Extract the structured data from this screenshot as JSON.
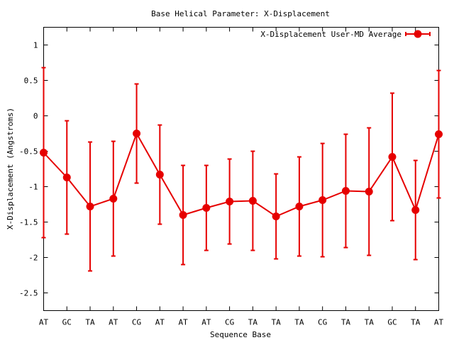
{
  "chart_data": {
    "type": "line",
    "title": "Base  Helical Parameter: X-Displacement",
    "xlabel": "Sequence Base",
    "ylabel": "X-Displacement (Angstroms)",
    "categories": [
      "AT",
      "GC",
      "TA",
      "AT",
      "CG",
      "AT",
      "AT",
      "AT",
      "CG",
      "TA",
      "TA",
      "TA",
      "CG",
      "TA",
      "TA",
      "GC",
      "TA",
      "AT"
    ],
    "ylim": [
      -2.75,
      1.25
    ],
    "yticks": [
      -2.5,
      -2,
      -1.5,
      -1,
      -0.5,
      0,
      0.5,
      1
    ],
    "ytick_labels": [
      "-2.5",
      "-2",
      "-1.5",
      "-1",
      "-0.5",
      "0",
      "0.5",
      "1"
    ],
    "grid": false,
    "legend_position": "top-right",
    "series": [
      {
        "name": "X-Displacement User-MD Average",
        "color": "#e60000",
        "marker": "circle",
        "values": [
          -0.52,
          -0.87,
          -1.28,
          -1.17,
          -0.25,
          -0.83,
          -1.4,
          -1.3,
          -1.21,
          -1.2,
          -1.42,
          -1.28,
          -1.19,
          -1.06,
          -1.07,
          -0.58,
          -1.33,
          -0.26
        ],
        "error": [
          1.2,
          0.8,
          0.91,
          0.81,
          0.7,
          0.7,
          0.7,
          0.6,
          0.6,
          0.7,
          0.6,
          0.7,
          0.8,
          0.8,
          0.9,
          0.9,
          0.7,
          0.9
        ]
      }
    ]
  }
}
